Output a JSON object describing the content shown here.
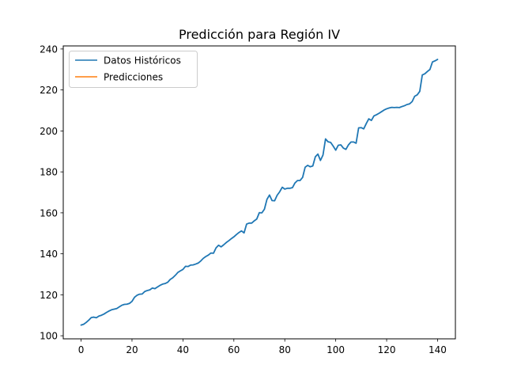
{
  "chart_data": {
    "type": "line",
    "title": "Predicción para Región IV",
    "xlabel": "",
    "ylabel": "",
    "xlim": [
      -7,
      147
    ],
    "ylim": [
      98.5,
      241.5
    ],
    "xticks": [
      0,
      20,
      40,
      60,
      80,
      100,
      120,
      140
    ],
    "yticks": [
      100,
      120,
      140,
      160,
      180,
      200,
      220,
      240
    ],
    "grid": false,
    "legend_position": "top-left",
    "series": [
      {
        "name": "Datos Históricos",
        "color": "#1f77b4",
        "x": [
          0,
          1,
          2,
          3,
          4,
          5,
          6,
          7,
          8,
          9,
          10,
          11,
          12,
          13,
          14,
          15,
          16,
          17,
          18,
          19,
          20,
          21,
          22,
          23,
          24,
          25,
          26,
          27,
          28,
          29,
          30,
          31,
          32,
          33,
          34,
          35,
          36,
          37,
          38,
          39,
          40,
          41,
          42,
          43,
          44,
          45,
          46,
          47,
          48,
          49,
          50,
          51,
          52,
          53,
          54,
          55,
          56,
          57,
          58,
          59,
          60,
          61,
          62,
          63,
          64,
          65,
          66,
          67,
          68,
          69,
          70,
          71,
          72,
          73,
          74,
          75,
          76,
          77,
          78,
          79,
          80,
          81,
          82,
          83,
          84,
          85,
          86,
          87,
          88,
          89,
          90,
          91,
          92,
          93,
          94,
          95,
          96,
          97,
          98,
          99,
          100,
          101,
          102,
          103,
          104,
          105,
          106,
          107,
          108,
          109,
          110,
          111,
          112,
          113,
          114,
          115,
          116,
          117,
          118,
          119,
          120,
          121,
          122,
          123,
          124,
          125,
          126,
          127,
          128,
          129,
          130,
          131,
          132,
          133,
          134,
          135,
          136,
          137,
          138,
          139,
          140
        ],
        "values": [
          105.2,
          105.6,
          106.5,
          107.6,
          108.9,
          109.1,
          108.8,
          109.6,
          110.0,
          110.6,
          111.4,
          112.1,
          112.7,
          113.0,
          113.3,
          114.1,
          114.9,
          115.3,
          115.4,
          115.8,
          116.8,
          118.8,
          119.8,
          120.3,
          120.4,
          121.6,
          122.1,
          122.4,
          123.3,
          123.0,
          123.8,
          124.6,
          125.2,
          125.5,
          126.1,
          127.5,
          128.3,
          129.5,
          130.9,
          131.7,
          132.4,
          133.9,
          133.8,
          134.5,
          134.6,
          135.0,
          135.5,
          136.5,
          137.8,
          138.7,
          139.4,
          140.4,
          140.3,
          142.9,
          144.2,
          143.4,
          144.4,
          145.5,
          146.4,
          147.4,
          148.3,
          149.4,
          150.4,
          151.2,
          150.2,
          154.5,
          155.0,
          155.0,
          156.1,
          157.0,
          160.1,
          160.0,
          161.8,
          166.6,
          168.7,
          166.0,
          165.9,
          168.6,
          170.3,
          172.5,
          171.6,
          172.0,
          172.0,
          172.3,
          174.6,
          175.8,
          175.8,
          177.3,
          182.3,
          183.2,
          182.5,
          182.9,
          187.4,
          188.7,
          185.6,
          188.2,
          196.1,
          194.7,
          194.4,
          192.6,
          190.6,
          193.0,
          193.2,
          191.6,
          191.0,
          193.2,
          194.6,
          194.6,
          194.0,
          201.5,
          201.6,
          201.0,
          203.6,
          205.9,
          205.1,
          207.3,
          207.9,
          208.6,
          209.4,
          210.2,
          210.8,
          211.2,
          211.5,
          211.4,
          211.5,
          211.4,
          211.9,
          212.3,
          212.9,
          213.2,
          214.3,
          216.9,
          217.6,
          219.3,
          227.3,
          227.9,
          229.0,
          230.0,
          233.7,
          234.2,
          234.9
        ]
      },
      {
        "name": "Predicciones",
        "color": "#ff7f0e",
        "x": [],
        "values": []
      }
    ]
  }
}
